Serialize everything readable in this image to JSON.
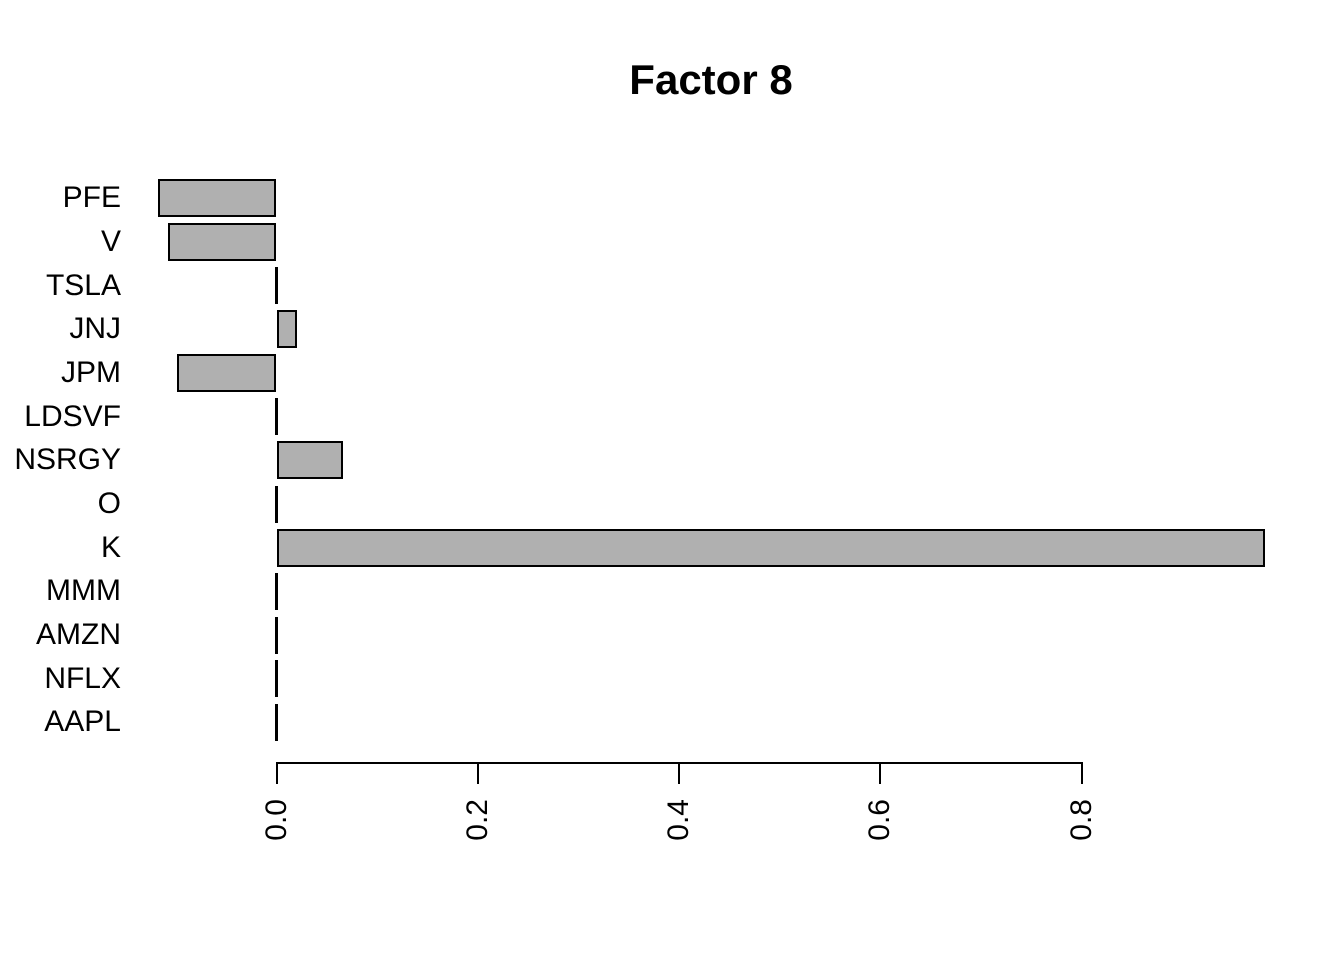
{
  "chart_data": {
    "type": "bar",
    "orientation": "horizontal",
    "title": "Factor 8",
    "xlabel": "",
    "ylabel": "",
    "categories": [
      "PFE",
      "V",
      "TSLA",
      "JNJ",
      "JPM",
      "LDSVF",
      "NSRGY",
      "O",
      "K",
      "MMM",
      "AMZN",
      "NFLX",
      "AAPL"
    ],
    "values": [
      -0.118,
      -0.108,
      0,
      0.02,
      -0.099,
      0,
      0.066,
      0,
      0.982,
      0,
      0,
      0,
      0
    ],
    "x_ticks": [
      0.0,
      0.2,
      0.4,
      0.6,
      0.8
    ],
    "x_tick_labels": [
      "0.0",
      "0.2",
      "0.4",
      "0.6",
      "0.8"
    ],
    "xlim": [
      -0.16,
      1.03
    ],
    "grid": false,
    "legend": false,
    "bar_fill_color": "#b0b0b0",
    "bar_border_color": "#000000",
    "axis_color": "#000000",
    "text_color": "#000000",
    "background_color": "#ffffff"
  }
}
